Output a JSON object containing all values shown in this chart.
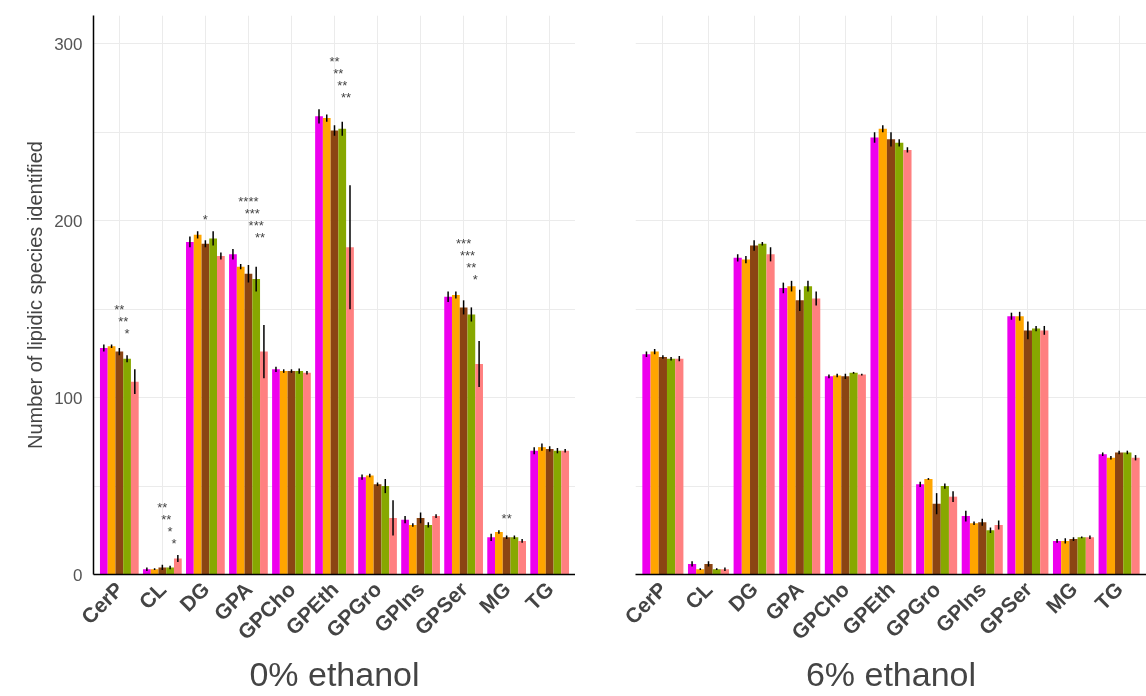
{
  "chart_data": [
    {
      "type": "bar",
      "xlabel": "0% ethanol",
      "ylabel": "Number of lipidic species identified",
      "categories": [
        "CerP",
        "CL",
        "DG",
        "GPA",
        "GPCho",
        "GPEth",
        "GPGro",
        "GPIns",
        "GPSer",
        "MG",
        "TG"
      ],
      "ylim": [
        0,
        316
      ],
      "yticks": [
        0,
        100,
        200,
        300
      ],
      "grid": true,
      "series": [
        {
          "color": "#ee00ee",
          "values": [
            128,
            3,
            188,
            181,
            116,
            259,
            55,
            31,
            157,
            21,
            70
          ],
          "errors": [
            2,
            1,
            3,
            3,
            1.5,
            4,
            1.5,
            2,
            3,
            2,
            2
          ]
        },
        {
          "color": "#ffa500",
          "values": [
            129,
            3,
            192,
            174,
            115,
            258,
            56,
            28,
            158,
            24,
            72
          ],
          "errors": [
            1,
            0.5,
            2,
            1.5,
            1,
            2,
            1,
            1,
            2,
            1,
            2
          ]
        },
        {
          "color": "#8b4513",
          "values": [
            126,
            4,
            187,
            170,
            115,
            251,
            51,
            32,
            151,
            21,
            71
          ],
          "errors": [
            2,
            1.5,
            2,
            5,
            1,
            3,
            1,
            3,
            4,
            1,
            1.5
          ]
        },
        {
          "color": "#87a800",
          "values": [
            122,
            4,
            190,
            167,
            115,
            252,
            50,
            28,
            147,
            21,
            70
          ],
          "errors": [
            2,
            1,
            4,
            7,
            1.5,
            4,
            4,
            1.5,
            4,
            1,
            1.5
          ]
        },
        {
          "color": "#ff8080",
          "values": [
            109,
            9,
            180,
            126,
            114,
            185,
            32,
            33,
            119,
            19,
            70
          ],
          "errors": [
            7,
            2,
            2,
            15,
            1,
            35,
            10,
            1,
            13,
            1,
            1
          ]
        }
      ],
      "annotations": [
        "**",
        "**",
        "*",
        "**",
        "**",
        "*",
        "*",
        "*",
        "****",
        "***",
        "***",
        "**",
        "**",
        "**",
        "**",
        "**",
        "***",
        "***",
        "**",
        "*",
        "**"
      ]
    },
    {
      "type": "bar",
      "xlabel": "6% ethanol",
      "categories": [
        "CerP",
        "CL",
        "DG",
        "GPA",
        "GPCho",
        "GPEth",
        "GPGro",
        "GPIns",
        "GPSer",
        "MG",
        "TG"
      ],
      "ylim": [
        0,
        316
      ],
      "yticks": [
        0,
        100,
        200,
        300
      ],
      "grid": true,
      "tick_labels": "x",
      "series": [
        {
          "color": "#ee00ee",
          "values": [
            124.5,
            6,
            179,
            162,
            112,
            247,
            51,
            33,
            146,
            19,
            68
          ],
          "errors": [
            1.5,
            1.5,
            2,
            3,
            1,
            3,
            1.5,
            3,
            2,
            1,
            1
          ]
        },
        {
          "color": "#ffa500",
          "values": [
            126,
            3,
            178,
            163,
            112.5,
            252,
            54,
            29,
            146,
            19,
            66
          ],
          "errors": [
            1.5,
            0.5,
            2,
            3,
            1,
            2,
            0.5,
            1,
            2.5,
            1.5,
            1
          ]
        },
        {
          "color": "#8b4513",
          "values": [
            123,
            6,
            186,
            155,
            112,
            246,
            40,
            29.5,
            138,
            20,
            69
          ],
          "errors": [
            1,
            1.5,
            3,
            6,
            1.5,
            4,
            6,
            2,
            5,
            1,
            1
          ]
        },
        {
          "color": "#87a800",
          "values": [
            122,
            3,
            187,
            163,
            114,
            244,
            50,
            25,
            139,
            21,
            69
          ],
          "errors": [
            1,
            0.5,
            1,
            3,
            0.5,
            2,
            1.5,
            1.5,
            1.5,
            0.5,
            1
          ]
        },
        {
          "color": "#ff8080",
          "values": [
            122,
            3,
            181,
            156,
            113,
            240,
            44,
            28,
            138,
            21,
            66
          ],
          "errors": [
            1.5,
            1,
            4,
            4,
            0.5,
            1.5,
            3,
            2.5,
            2.5,
            1,
            1.5
          ]
        }
      ]
    }
  ]
}
